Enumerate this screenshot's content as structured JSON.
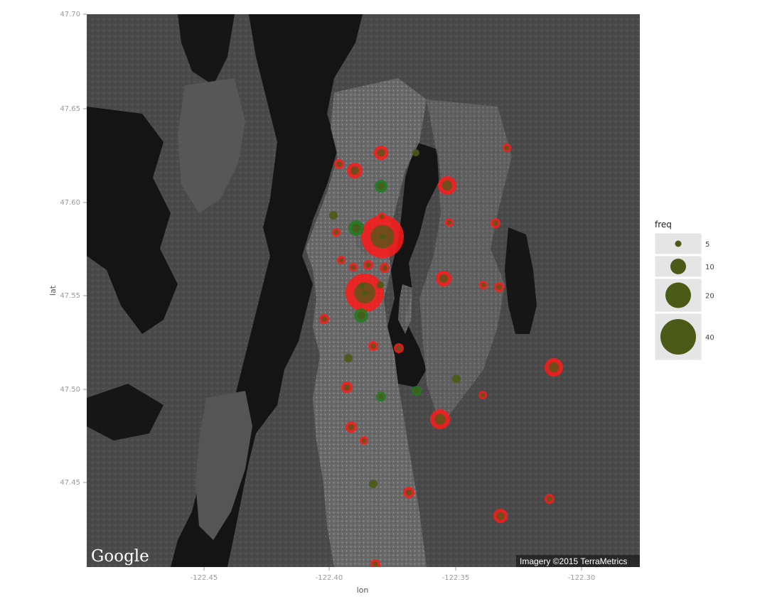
{
  "map": {
    "panel_background": "#2a2a2a",
    "water_color": "#141414",
    "land_color": "#5c5c5c",
    "urban_color": "#8a8a8a",
    "google_logo": "Google",
    "imagery_credit": "Imagery ©2015 TerraMetrics"
  },
  "axes": {
    "x_title": "lon",
    "y_title": "lat",
    "x_ticks": [
      "-122.45",
      "-122.40",
      "-122.35",
      "-122.30"
    ],
    "y_ticks": [
      "47.70",
      "47.65",
      "47.60",
      "47.55",
      "47.50",
      "47.45",
      "47.40"
    ]
  },
  "legend": {
    "title": "freq",
    "background": "#e5e5e5",
    "swatch_color": "#4b5a17",
    "entries": [
      {
        "label": "5",
        "value": 5
      },
      {
        "label": "10",
        "value": 10
      },
      {
        "label": "20",
        "value": 20
      },
      {
        "label": "40",
        "value": 40
      }
    ]
  },
  "colors": {
    "red_points": "#ff1a1a",
    "green_points": "#1c7a1c",
    "olive_points": "#4b5a17"
  }
}
